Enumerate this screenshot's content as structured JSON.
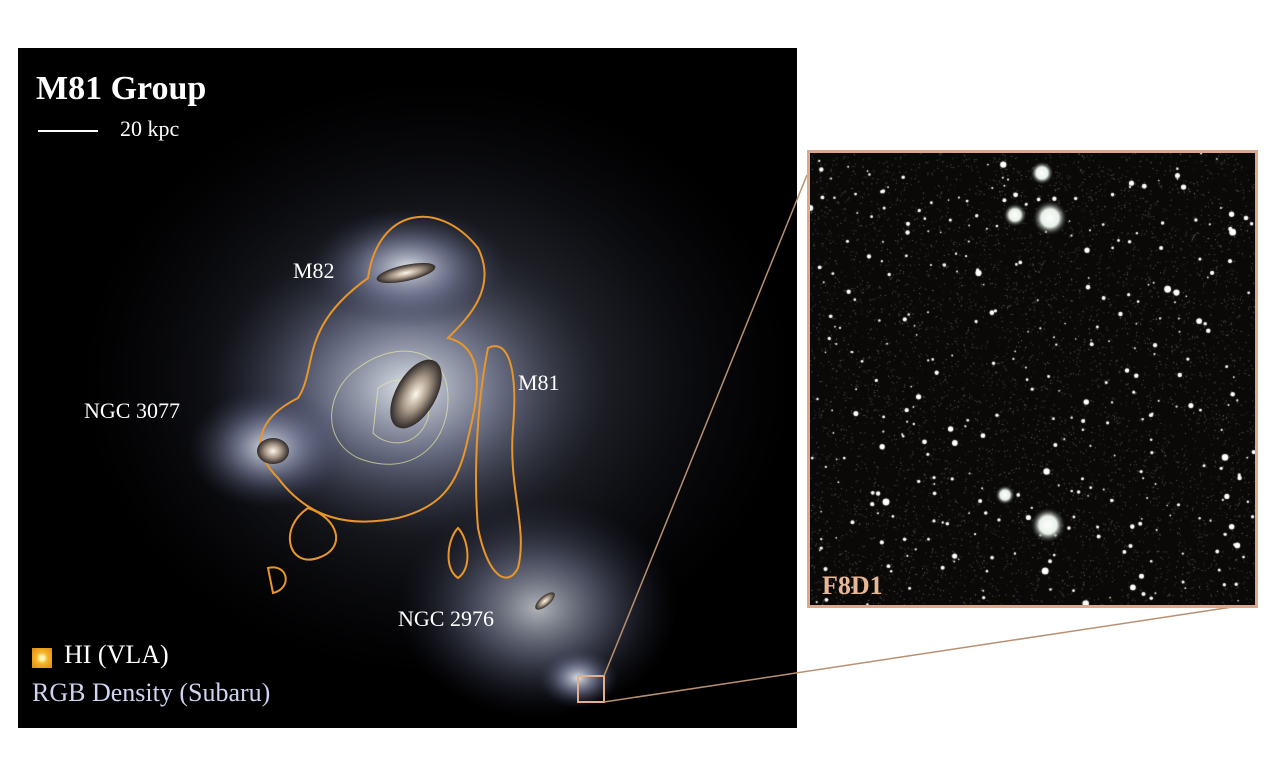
{
  "main_panel": {
    "title": "M81 Group",
    "scale_label": "20 kpc",
    "galaxy_labels": [
      "M82",
      "M81",
      "NGC 3077",
      "NGC 2976"
    ],
    "legend": {
      "hi_label": "HI (VLA)",
      "rgb_label": "RGB Density (Subaru)",
      "hi_color": "#f0a030",
      "rgb_color": "#cfd4f0"
    }
  },
  "inset": {
    "label": "F8D1",
    "border_color": "#d9a98a"
  }
}
